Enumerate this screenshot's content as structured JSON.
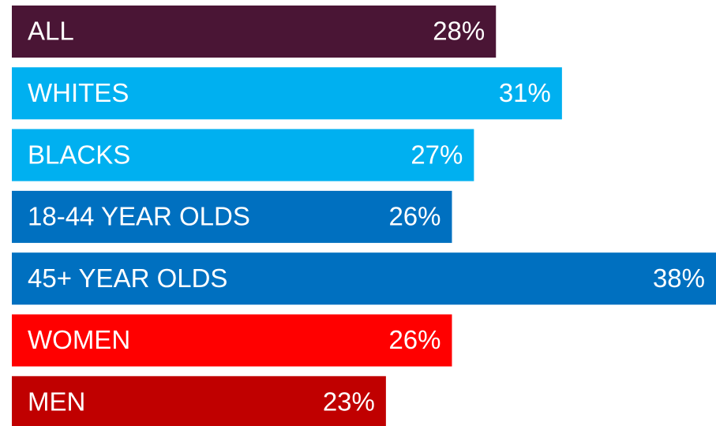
{
  "chart_data": {
    "type": "bar",
    "orientation": "horizontal",
    "categories": [
      "ALL",
      "WHITES",
      "BLACKS",
      "18-44 YEAR OLDS",
      "45+ YEAR OLDS",
      "WOMEN",
      "MEN"
    ],
    "values": [
      28,
      31,
      27,
      26,
      38,
      26,
      23
    ],
    "value_labels": [
      "28%",
      "31%",
      "27%",
      "26%",
      "38%",
      "26%",
      "23%"
    ],
    "colors": [
      "#4a1535",
      "#00b0f0",
      "#00b0f0",
      "#0070c0",
      "#0070c0",
      "#ff0000",
      "#c00000"
    ],
    "xlim": [
      6,
      38
    ]
  }
}
